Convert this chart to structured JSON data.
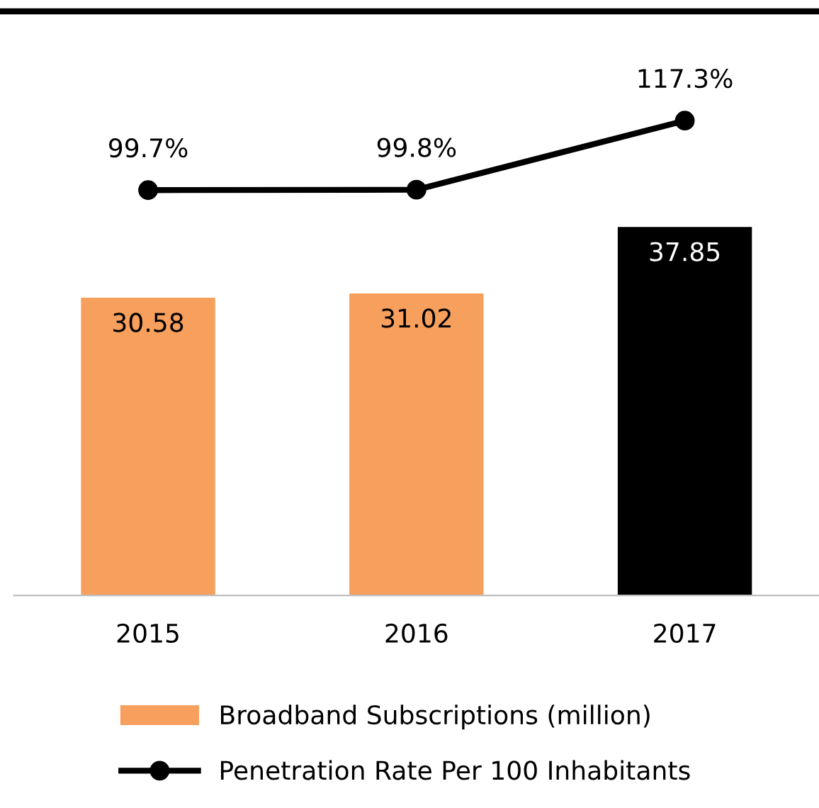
{
  "chart_data": {
    "type": "bar",
    "categories": [
      "2015",
      "2016",
      "2017"
    ],
    "series": [
      {
        "name": "Broadband Subscriptions (million)",
        "color": "#f79f5c",
        "colors": [
          "#f79f5c",
          "#f79f5c",
          "#000000"
        ],
        "values": [
          30.58,
          31.02,
          37.85
        ]
      },
      {
        "name": "Penetration Rate Per 100 Inhabitants",
        "type": "line",
        "axis": "y2",
        "color": "#000000",
        "values": [
          99.7,
          99.8,
          117.3
        ],
        "value_labels": [
          "99.7%",
          "99.8%",
          "117.3%"
        ]
      }
    ],
    "ylim": [
      0,
      60
    ],
    "y2lim": [
      -3,
      145
    ],
    "data_labels": true,
    "tick_labels": "x",
    "legend": "bottom",
    "marker": "circle",
    "line_style": "solid",
    "grid": false
  }
}
